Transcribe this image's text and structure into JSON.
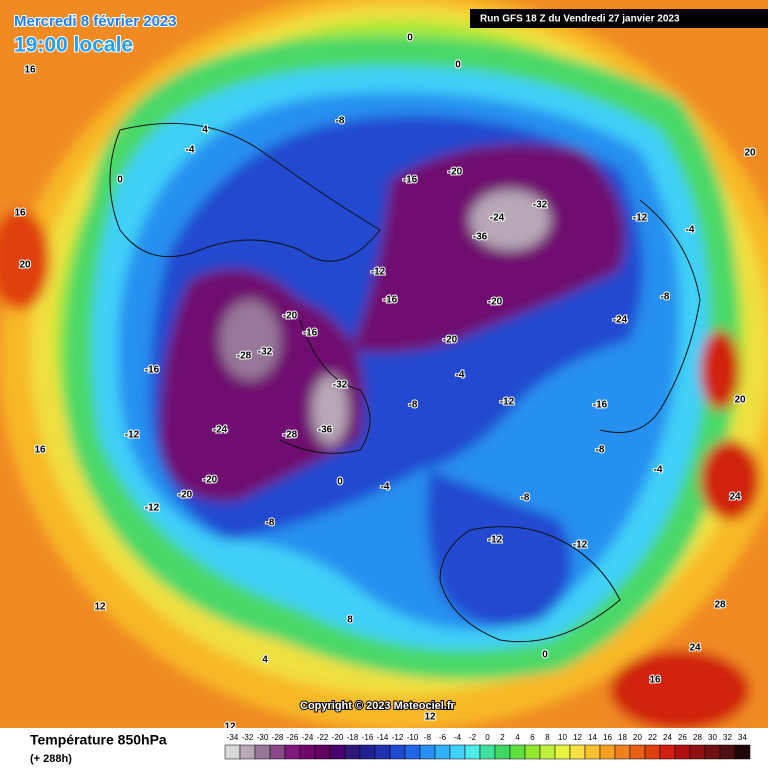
{
  "header": {
    "date": "Mercredi 8 février 2023",
    "time": "19:00 locale",
    "run": "Run GFS 18 Z du Vendredi 27 janvier 2023"
  },
  "copyright": "Copyright © 2023 Meteociel.fr",
  "legend": {
    "title": "Température 850hPa",
    "subtitle": "(+ 288h)",
    "ticks": [
      -34,
      -32,
      -30,
      -28,
      -26,
      -24,
      -22,
      -20,
      -18,
      -16,
      -14,
      -12,
      -10,
      -8,
      -6,
      -4,
      -2,
      0,
      2,
      4,
      6,
      8,
      10,
      12,
      14,
      16,
      18,
      20,
      22,
      24,
      26,
      28,
      30,
      32,
      34
    ],
    "colors": [
      "#d8d8d8",
      "#b8a8b8",
      "#987898",
      "#884888",
      "#801880",
      "#700870",
      "#600060",
      "#48006c",
      "#301878",
      "#202090",
      "#2030b0",
      "#2048d0",
      "#2068e8",
      "#2890f0",
      "#30b0f8",
      "#40d0f8",
      "#50e8e8",
      "#40e0a0",
      "#40d860",
      "#60e040",
      "#90e830",
      "#c0f040",
      "#e8f040",
      "#f8e040",
      "#f8c030",
      "#f8a020",
      "#f08020",
      "#e86018",
      "#e04010",
      "#d02010",
      "#b01010",
      "#901010",
      "#701010",
      "#501010",
      "#200808"
    ]
  },
  "map_labels": [
    "-8",
    "-16",
    "-20",
    "-32",
    "-24",
    "-36",
    "-12",
    "-4",
    "-12",
    "-16",
    "-20",
    "-20",
    "-24",
    "-8",
    "-20",
    "-28",
    "-32",
    "-16",
    "-32",
    "-36",
    "-28",
    "-24",
    "-20",
    "-20",
    "-16",
    "-12",
    "-12",
    "-8",
    "0",
    "-4",
    "-8",
    "-12",
    "-12",
    "-8",
    "-8",
    "-4",
    "-4",
    "0",
    "0",
    "16",
    "16",
    "20",
    "16",
    "12",
    "4",
    "20",
    "20",
    "24",
    "24",
    "28",
    "16",
    "12",
    "12",
    "0",
    "-12",
    "-4",
    "-16",
    "4",
    "8",
    "0"
  ]
}
